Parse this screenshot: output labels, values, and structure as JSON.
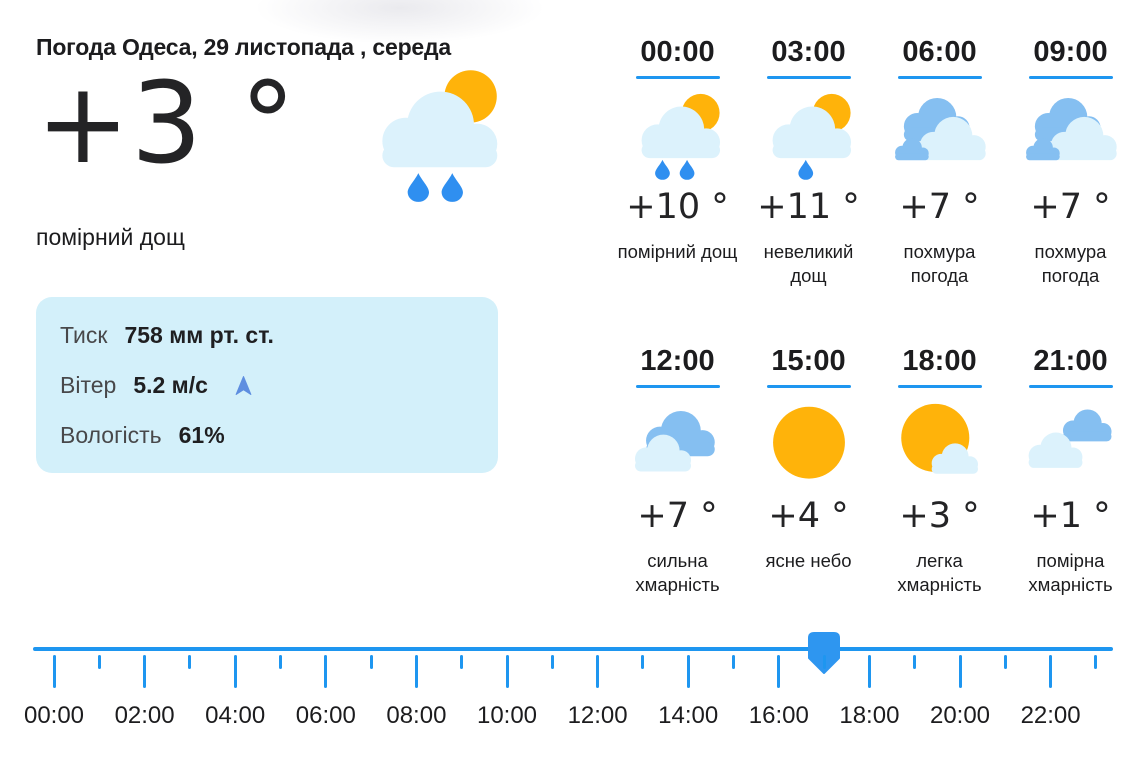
{
  "colors": {
    "accent": "#1e96f0",
    "sun_yellow": "#ffb30a",
    "cloud_blue": "#85bff1",
    "cloud_light": "#dcf2fc",
    "rain_drop": "#2f8ff0",
    "card_bg": "#d3f0fa",
    "text_dark": "#1c1c1e",
    "text_gray": "#48484a",
    "wind_arrow": "#5e8ee0"
  },
  "header": {
    "title": "Погода Одеса, 29 листопада , середа"
  },
  "current": {
    "temperature": "+3 °",
    "condition": "помірний дощ",
    "icon": "sun-cloud-rain-2"
  },
  "details": {
    "pressure_label": "Тиск",
    "pressure_value": "758 мм рт. ст.",
    "wind_label": "Вітер",
    "wind_value": "5.2 м/с",
    "wind_direction": "north",
    "humidity_label": "Вологість",
    "humidity_value": "61%"
  },
  "forecast": [
    {
      "time": "00:00",
      "temp": "+10 °",
      "condition": "помірний дощ",
      "icon": "sun-cloud-rain-2"
    },
    {
      "time": "03:00",
      "temp": "+11 °",
      "condition": "невеликий дощ",
      "icon": "sun-cloud-rain-1"
    },
    {
      "time": "06:00",
      "temp": "+7 °",
      "condition": "похмура погода",
      "icon": "overcast"
    },
    {
      "time": "09:00",
      "temp": "+7 °",
      "condition": "похмура погода",
      "icon": "overcast"
    },
    {
      "time": "12:00",
      "temp": "+7 °",
      "condition": "сильна хмарність",
      "icon": "mostly-cloudy"
    },
    {
      "time": "15:00",
      "temp": "+4 °",
      "condition": "ясне небо",
      "icon": "clear-sun"
    },
    {
      "time": "18:00",
      "temp": "+3 °",
      "condition": "легка хмарність",
      "icon": "sun-small-cloud"
    },
    {
      "time": "21:00",
      "temp": "+1 °",
      "condition": "помірна хмарність",
      "icon": "partly-cloudy"
    }
  ],
  "timeline": {
    "tick_count": 24,
    "labels": [
      "00:00",
      "02:00",
      "04:00",
      "06:00",
      "08:00",
      "10:00",
      "12:00",
      "14:00",
      "16:00",
      "18:00",
      "20:00",
      "22:00"
    ],
    "selected_hour": 17,
    "selected_time": "17:00"
  }
}
